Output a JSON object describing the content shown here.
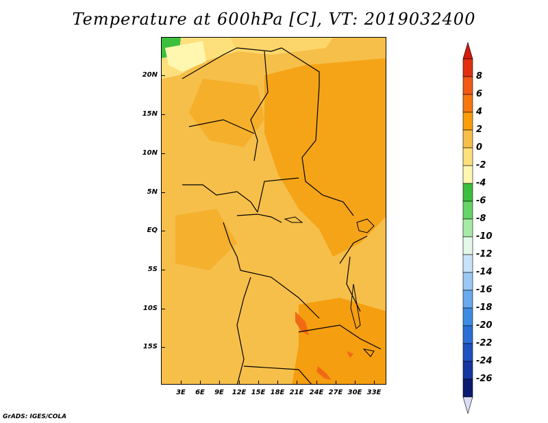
{
  "title": "Temperature at 600hPa [C], VT: 2019032400",
  "credit": "GrADS: IGES/COLA",
  "map": {
    "lat_labels": [
      "20N",
      "15N",
      "10N",
      "5N",
      "EQ",
      "5S",
      "10S",
      "15S"
    ],
    "lon_labels": [
      "3E",
      "6E",
      "9E",
      "12E",
      "15E",
      "18E",
      "21E",
      "24E",
      "27E",
      "30E",
      "33E"
    ]
  },
  "colorbar": {
    "labels": [
      "8",
      "6",
      "4",
      "2",
      "0",
      "-2",
      "-4",
      "-6",
      "-8",
      "-10",
      "-12",
      "-14",
      "-16",
      "-18",
      "-20",
      "-22",
      "-24",
      "-26"
    ],
    "colors": [
      "#e03010",
      "#f05a14",
      "#f5780f",
      "#f99d0c",
      "#f6bf4a",
      "#fde07c",
      "#fff7b0",
      "#3cbf3c",
      "#66d466",
      "#a6eaa6",
      "#e3f8e8",
      "#c8e3f8",
      "#9ac8f3",
      "#6aa9ee",
      "#3e8be4",
      "#2a6fd6",
      "#1f52c0",
      "#1538a0",
      "#0a1b70"
    ],
    "top_color": "#d41c0c",
    "bottom_color": "#dcdcf4"
  }
}
